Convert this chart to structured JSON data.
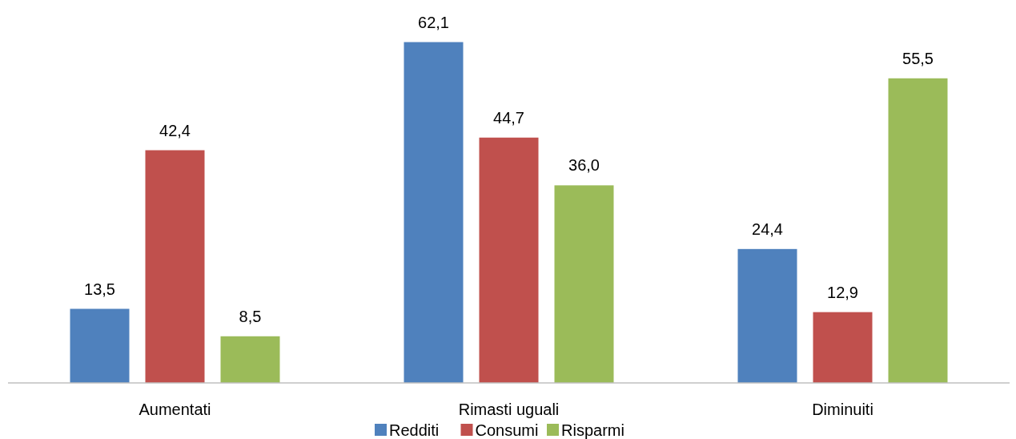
{
  "chart_data": {
    "type": "bar",
    "categories": [
      "Aumentati",
      "Rimasti uguali",
      "Diminuiti"
    ],
    "series": [
      {
        "name": "Redditi",
        "color": "#4f81bd",
        "values": [
          13.5,
          62.1,
          24.4
        ],
        "value_labels": [
          "13,5",
          "62,1",
          "24,4"
        ]
      },
      {
        "name": "Consumi",
        "color": "#c0504d",
        "values": [
          42.4,
          44.7,
          12.9
        ],
        "value_labels": [
          "42,4",
          "44,7",
          "12,9"
        ]
      },
      {
        "name": "Risparmi",
        "color": "#9bbb59",
        "values": [
          8.5,
          36.0,
          55.5
        ],
        "value_labels": [
          "8,5",
          "36,0",
          "55,5"
        ]
      }
    ],
    "legend": "bottom"
  }
}
